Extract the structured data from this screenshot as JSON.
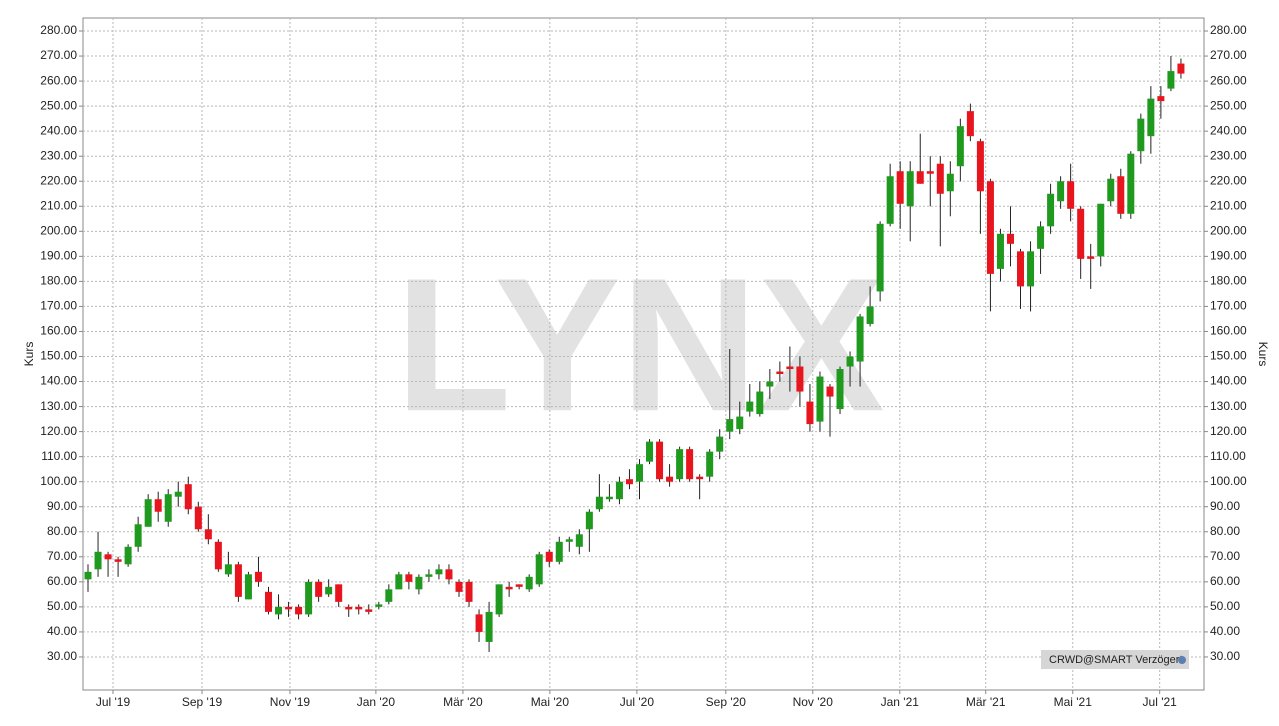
{
  "chart_data": {
    "type": "candlestick",
    "y_axis_label": "Kurs",
    "watermark": "LYNX",
    "badge": "CRWD@SMART Verzögert",
    "up_color": "#1f9a1f",
    "down_color": "#e8141e",
    "grid": true,
    "xlim": [
      -0.5,
      111.3
    ],
    "ylim": [
      16.8,
      285.2
    ],
    "xticks": [
      {
        "value": 2.49,
        "label": "Jul '19"
      },
      {
        "value": 11.37,
        "label": "Sep '19"
      },
      {
        "value": 20.14,
        "label": "Nov '19"
      },
      {
        "value": 28.71,
        "label": "Jan '20"
      },
      {
        "value": 37.39,
        "label": "Mär '20"
      },
      {
        "value": 46.06,
        "label": "Mai '20"
      },
      {
        "value": 54.74,
        "label": "Jul '20"
      },
      {
        "value": 63.61,
        "label": "Sep '20"
      },
      {
        "value": 72.28,
        "label": "Nov '20"
      },
      {
        "value": 80.96,
        "label": "Jan '21"
      },
      {
        "value": 89.53,
        "label": "Mär '21"
      },
      {
        "value": 98.21,
        "label": "Mai '21"
      },
      {
        "value": 106.88,
        "label": "Jul '21"
      }
    ],
    "yticks": [
      {
        "value": 30,
        "label": "30.00"
      },
      {
        "value": 40,
        "label": "40.00"
      },
      {
        "value": 50,
        "label": "50.00"
      },
      {
        "value": 60,
        "label": "60.00"
      },
      {
        "value": 70,
        "label": "70.00"
      },
      {
        "value": 80,
        "label": "80.00"
      },
      {
        "value": 90,
        "label": "90.00"
      },
      {
        "value": 100,
        "label": "100.00"
      },
      {
        "value": 110,
        "label": "110.00"
      },
      {
        "value": 120,
        "label": "120.00"
      },
      {
        "value": 130,
        "label": "130.00"
      },
      {
        "value": 140,
        "label": "140.00"
      },
      {
        "value": 150,
        "label": "150.00"
      },
      {
        "value": 160,
        "label": "160.00"
      },
      {
        "value": 170,
        "label": "170.00"
      },
      {
        "value": 180,
        "label": "180.00"
      },
      {
        "value": 190,
        "label": "190.00"
      },
      {
        "value": 200,
        "label": "200.00"
      },
      {
        "value": 210,
        "label": "210.00"
      },
      {
        "value": 220,
        "label": "220.00"
      },
      {
        "value": 230,
        "label": "230.00"
      },
      {
        "value": 240,
        "label": "240.00"
      },
      {
        "value": 250,
        "label": "250.00"
      },
      {
        "value": 260,
        "label": "260.00"
      },
      {
        "value": 270,
        "label": "270.00"
      },
      {
        "value": 280,
        "label": "280.00"
      }
    ],
    "open": [
      61,
      65,
      71,
      69,
      67,
      74,
      82,
      93,
      84,
      94,
      99,
      90,
      81,
      76,
      63,
      67,
      53,
      64,
      56,
      47,
      50,
      50,
      47,
      60,
      55,
      59,
      50,
      50,
      49,
      50,
      52,
      57,
      63,
      57,
      62,
      63,
      65,
      60,
      60,
      47,
      36,
      47,
      58,
      59,
      57,
      59,
      72,
      68,
      76,
      74,
      81,
      89,
      93,
      93,
      101,
      100,
      108,
      116,
      102,
      101,
      113,
      102,
      102,
      112,
      120,
      121,
      128,
      127,
      138,
      144,
      146,
      146,
      132,
      124,
      138,
      129,
      146,
      148,
      163,
      176,
      203,
      224,
      210,
      224,
      224,
      227,
      216,
      226,
      248,
      236,
      220,
      185,
      199,
      192,
      178,
      193,
      202,
      212,
      220,
      209,
      190,
      190,
      212,
      222,
      207,
      232,
      238,
      254,
      257,
      267
    ],
    "high": [
      67,
      80,
      72,
      70,
      75,
      86,
      95,
      96,
      97,
      100,
      102,
      92,
      87,
      77,
      72,
      68,
      64,
      70,
      58,
      55,
      52,
      51,
      61,
      61,
      61,
      59,
      51,
      51,
      51,
      52,
      59,
      64,
      64,
      63,
      65,
      67,
      67,
      61,
      61,
      49,
      52,
      59,
      60,
      59,
      63,
      72,
      73,
      78,
      78,
      81,
      89,
      103,
      99,
      102,
      105,
      109,
      117,
      117,
      107,
      114,
      114,
      103,
      113,
      121,
      153,
      132,
      139,
      140,
      145,
      148,
      154,
      150,
      139,
      144,
      139,
      146,
      152,
      167,
      178,
      204,
      227,
      228,
      228,
      239,
      230,
      230,
      228,
      245,
      251,
      237,
      221,
      201,
      210,
      193,
      196,
      204,
      219,
      222,
      227,
      210,
      195,
      211,
      223,
      225,
      232,
      247,
      258,
      258,
      270,
      269
    ],
    "low": [
      56,
      62,
      62,
      62,
      66,
      72,
      82,
      84,
      82,
      90,
      87,
      80,
      75,
      64,
      62,
      52,
      53,
      58,
      47,
      45,
      46,
      45,
      46,
      52,
      54,
      50,
      46,
      47,
      47,
      49,
      51,
      57,
      57,
      55,
      60,
      61,
      59,
      54,
      50,
      36,
      32,
      46,
      54,
      57,
      56,
      58,
      66,
      67,
      72,
      71,
      72,
      88,
      92,
      91,
      97,
      93,
      107,
      100,
      98,
      100,
      100,
      93,
      100,
      109,
      117,
      119,
      126,
      126,
      133,
      140,
      136,
      130,
      120,
      120,
      118,
      127,
      138,
      138,
      162,
      172,
      202,
      201,
      196,
      219,
      210,
      194,
      206,
      220,
      236,
      199,
      168,
      180,
      186,
      169,
      168,
      183,
      199,
      209,
      204,
      181,
      177,
      186,
      210,
      205,
      205,
      227,
      231,
      245,
      256,
      261
    ],
    "close": [
      64,
      72,
      69,
      68,
      74,
      83,
      93,
      88,
      95,
      96,
      89,
      81,
      77,
      65,
      67,
      54,
      63,
      60,
      48,
      50,
      49,
      47,
      60,
      54,
      58,
      52,
      49,
      49,
      48,
      51,
      57,
      63,
      60,
      62,
      63,
      65,
      61,
      56,
      52,
      40,
      48,
      59,
      57,
      58,
      62,
      71,
      68,
      76,
      77,
      79,
      88,
      94,
      94,
      100,
      99,
      107,
      116,
      101,
      100,
      113,
      101,
      101,
      112,
      118,
      125,
      126,
      132,
      136,
      140,
      143,
      145,
      136,
      123,
      142,
      134,
      145,
      150,
      166,
      170,
      203,
      222,
      211,
      224,
      219,
      223,
      215,
      223,
      242,
      238,
      216,
      183,
      199,
      195,
      178,
      192,
      202,
      215,
      220,
      209,
      189,
      189,
      211,
      221,
      207,
      231,
      245,
      253,
      252,
      264,
      263
    ]
  }
}
